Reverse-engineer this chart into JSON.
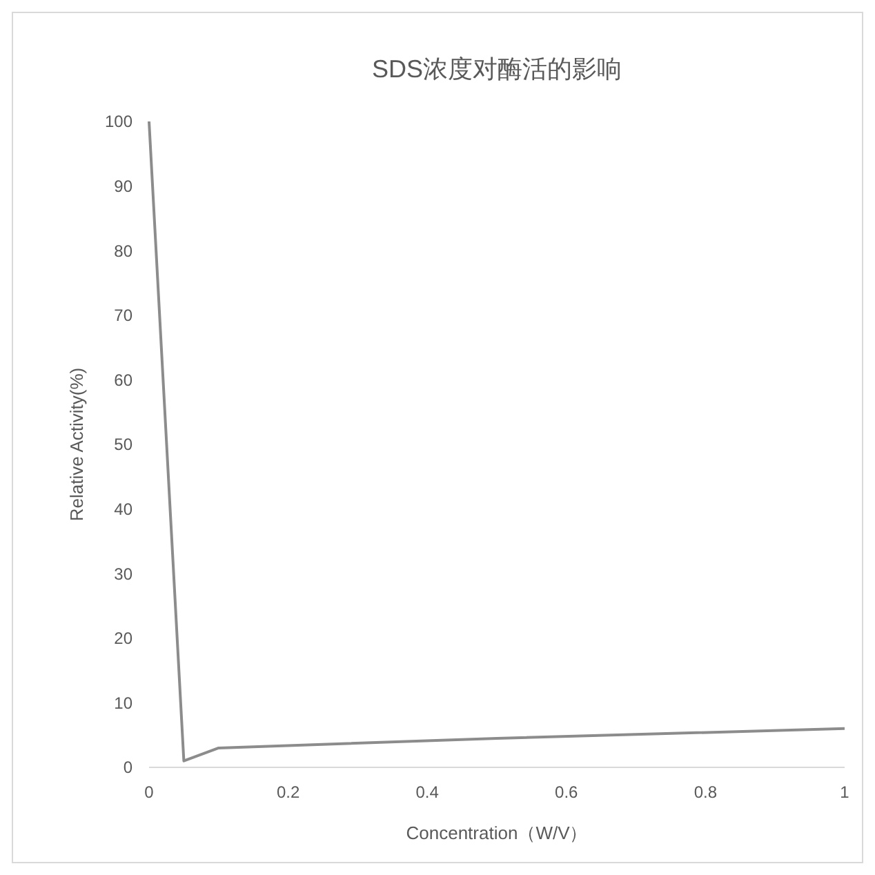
{
  "chart_data": {
    "type": "line",
    "title": "SDS浓度对酶活的影响",
    "xlabel": "Concentration（W/V）",
    "ylabel": "Relative Activity(%)",
    "x": [
      0,
      0.05,
      0.1,
      0.5,
      1
    ],
    "series": [
      {
        "color": "#8c8c8c",
        "values": [
          100,
          1,
          3,
          4.5,
          6
        ]
      }
    ],
    "xlim": [
      0,
      1
    ],
    "xticks": [
      0,
      0.2,
      0.4,
      0.6,
      0.8,
      1
    ],
    "ylim": [
      0,
      100
    ],
    "yticks": [
      0,
      10,
      20,
      30,
      40,
      50,
      60,
      70,
      80,
      90,
      100
    ],
    "grid": false
  }
}
